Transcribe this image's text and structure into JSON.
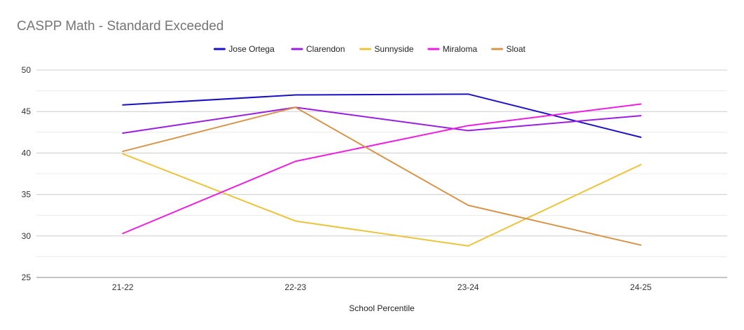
{
  "chart_data": {
    "type": "line",
    "title": "CASPP Math - Standard Exceeded",
    "xlabel": "School Percentile",
    "ylabel": "",
    "categories": [
      "21-22",
      "22-23",
      "23-24",
      "24-25"
    ],
    "ylim": [
      25,
      50
    ],
    "yticks": [
      25,
      30,
      35,
      40,
      45,
      50
    ],
    "legend_position": "top",
    "series": [
      {
        "name": "Jose Ortega",
        "color": "#1a10c4",
        "values": [
          45.8,
          47.0,
          47.1,
          41.9
        ]
      },
      {
        "name": "Clarendon",
        "color": "#9a1ee0",
        "values": [
          42.4,
          45.5,
          42.7,
          44.5
        ]
      },
      {
        "name": "Sunnyside",
        "color": "#ecc43c",
        "values": [
          39.9,
          31.8,
          28.8,
          38.6
        ]
      },
      {
        "name": "Miraloma",
        "color": "#ee1ee0",
        "values": [
          30.3,
          39.0,
          43.3,
          45.9
        ]
      },
      {
        "name": "Sloat",
        "color": "#d6954a",
        "values": [
          40.2,
          45.5,
          33.7,
          28.9
        ]
      }
    ]
  }
}
